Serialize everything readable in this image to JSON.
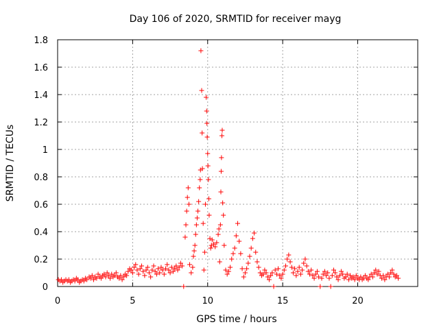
{
  "chart_data": {
    "type": "scatter",
    "title": "Day 106 of 2020, SRMTID for receiver mayg",
    "xlabel": "GPS time / hours",
    "ylabel": "SRMTID / TECUs",
    "xlim": [
      0,
      24
    ],
    "ylim": [
      0,
      1.8
    ],
    "xticks": [
      0,
      5,
      10,
      15,
      20
    ],
    "yticks": [
      0,
      0.2,
      0.4,
      0.6,
      0.8,
      1,
      1.2,
      1.4,
      1.6,
      1.8
    ],
    "xtick_labels": [
      "0",
      "5",
      "10",
      "15",
      "20"
    ],
    "ytick_labels": [
      "0",
      "0.2",
      "0.4",
      "0.6",
      "0.8",
      "1",
      "1.2",
      "1.4",
      "1.6",
      "1.8"
    ],
    "grid": true,
    "marker": "+",
    "color": "#ff0000",
    "series": [
      {
        "name": "SRMTID",
        "points": [
          [
            0.05,
            0.05
          ],
          [
            0.15,
            0.04
          ],
          [
            0.25,
            0.05
          ],
          [
            0.35,
            0.03
          ],
          [
            0.45,
            0.04
          ],
          [
            0.55,
            0.05
          ],
          [
            0.65,
            0.04
          ],
          [
            0.75,
            0.05
          ],
          [
            0.85,
            0.03
          ],
          [
            0.95,
            0.04
          ],
          [
            1.05,
            0.05
          ],
          [
            1.15,
            0.04
          ],
          [
            1.25,
            0.06
          ],
          [
            1.35,
            0.05
          ],
          [
            1.45,
            0.03
          ],
          [
            1.55,
            0.04
          ],
          [
            1.65,
            0.05
          ],
          [
            1.75,
            0.04
          ],
          [
            1.85,
            0.06
          ],
          [
            1.95,
            0.05
          ],
          [
            2.1,
            0.07
          ],
          [
            2.2,
            0.06
          ],
          [
            2.3,
            0.08
          ],
          [
            2.4,
            0.05
          ],
          [
            2.5,
            0.07
          ],
          [
            2.6,
            0.06
          ],
          [
            2.7,
            0.09
          ],
          [
            2.8,
            0.07
          ],
          [
            2.9,
            0.06
          ],
          [
            3.0,
            0.08
          ],
          [
            3.1,
            0.09
          ],
          [
            3.2,
            0.07
          ],
          [
            3.3,
            0.1
          ],
          [
            3.4,
            0.08
          ],
          [
            3.5,
            0.06
          ],
          [
            3.6,
            0.09
          ],
          [
            3.7,
            0.07
          ],
          [
            3.8,
            0.08
          ],
          [
            3.9,
            0.1
          ],
          [
            4.0,
            0.07
          ],
          [
            4.1,
            0.06
          ],
          [
            4.2,
            0.08
          ],
          [
            4.3,
            0.05
          ],
          [
            4.4,
            0.07
          ],
          [
            4.5,
            0.09
          ],
          [
            4.6,
            0.08
          ],
          [
            4.7,
            0.11
          ],
          [
            4.8,
            0.13
          ],
          [
            4.9,
            0.12
          ],
          [
            5.0,
            0.1
          ],
          [
            5.1,
            0.14
          ],
          [
            5.2,
            0.16
          ],
          [
            5.3,
            0.12
          ],
          [
            5.4,
            0.09
          ],
          [
            5.5,
            0.13
          ],
          [
            5.6,
            0.15
          ],
          [
            5.7,
            0.11
          ],
          [
            5.8,
            0.08
          ],
          [
            5.9,
            0.12
          ],
          [
            6.0,
            0.14
          ],
          [
            6.1,
            0.1
          ],
          [
            6.2,
            0.07
          ],
          [
            6.3,
            0.12
          ],
          [
            6.4,
            0.15
          ],
          [
            6.5,
            0.11
          ],
          [
            6.6,
            0.09
          ],
          [
            6.7,
            0.13
          ],
          [
            6.8,
            0.1
          ],
          [
            6.9,
            0.14
          ],
          [
            7.0,
            0.12
          ],
          [
            7.1,
            0.09
          ],
          [
            7.2,
            0.13
          ],
          [
            7.3,
            0.16
          ],
          [
            7.4,
            0.12
          ],
          [
            7.5,
            0.1
          ],
          [
            7.6,
            0.14
          ],
          [
            7.7,
            0.11
          ],
          [
            7.8,
            0.13
          ],
          [
            7.9,
            0.15
          ],
          [
            8.0,
            0.12
          ],
          [
            8.1,
            0.14
          ],
          [
            8.2,
            0.17
          ],
          [
            8.3,
            0.15
          ],
          [
            8.4,
            0.0
          ],
          [
            8.5,
            0.36
          ],
          [
            8.55,
            0.45
          ],
          [
            8.6,
            0.55
          ],
          [
            8.65,
            0.65
          ],
          [
            8.7,
            0.72
          ],
          [
            8.75,
            0.6
          ],
          [
            8.8,
            0.16
          ],
          [
            8.9,
            0.1
          ],
          [
            9.0,
            0.14
          ],
          [
            9.05,
            0.22
          ],
          [
            9.1,
            0.26
          ],
          [
            9.15,
            0.3
          ],
          [
            9.2,
            0.38
          ],
          [
            9.25,
            0.45
          ],
          [
            9.3,
            0.5
          ],
          [
            9.35,
            0.55
          ],
          [
            9.4,
            0.62
          ],
          [
            9.45,
            0.72
          ],
          [
            9.5,
            0.78
          ],
          [
            9.52,
            0.85
          ],
          [
            9.55,
            1.72
          ],
          [
            9.6,
            1.43
          ],
          [
            9.63,
            1.12
          ],
          [
            9.65,
            0.86
          ],
          [
            9.7,
            0.46
          ],
          [
            9.75,
            0.12
          ],
          [
            9.8,
            0.25
          ],
          [
            9.85,
            0.6
          ],
          [
            9.9,
            1.38
          ],
          [
            9.93,
            1.28
          ],
          [
            9.95,
            1.19
          ],
          [
            9.97,
            1.09
          ],
          [
            10.0,
            0.97
          ],
          [
            10.02,
            0.88
          ],
          [
            10.05,
            0.78
          ],
          [
            10.08,
            0.64
          ],
          [
            10.1,
            0.52
          ],
          [
            10.15,
            0.35
          ],
          [
            10.2,
            0.28
          ],
          [
            10.25,
            0.3
          ],
          [
            10.3,
            0.34
          ],
          [
            10.4,
            0.31
          ],
          [
            10.5,
            0.29
          ],
          [
            10.6,
            0.32
          ],
          [
            10.7,
            0.38
          ],
          [
            10.75,
            0.42
          ],
          [
            10.8,
            0.18
          ],
          [
            10.85,
            0.45
          ],
          [
            10.88,
            0.69
          ],
          [
            10.9,
            0.84
          ],
          [
            10.92,
            0.94
          ],
          [
            10.95,
            1.1
          ],
          [
            10.97,
            1.14
          ],
          [
            11.0,
            0.61
          ],
          [
            11.05,
            0.52
          ],
          [
            11.1,
            0.3
          ],
          [
            11.2,
            0.12
          ],
          [
            11.3,
            0.09
          ],
          [
            11.4,
            0.11
          ],
          [
            11.5,
            0.14
          ],
          [
            11.6,
            0.2
          ],
          [
            11.7,
            0.24
          ],
          [
            11.8,
            0.28
          ],
          [
            11.9,
            0.37
          ],
          [
            12.0,
            0.46
          ],
          [
            12.1,
            0.33
          ],
          [
            12.2,
            0.24
          ],
          [
            12.3,
            0.13
          ],
          [
            12.4,
            0.07
          ],
          [
            12.5,
            0.1
          ],
          [
            12.6,
            0.13
          ],
          [
            12.7,
            0.17
          ],
          [
            12.8,
            0.22
          ],
          [
            12.9,
            0.28
          ],
          [
            13.0,
            0.35
          ],
          [
            13.1,
            0.39
          ],
          [
            13.2,
            0.25
          ],
          [
            13.3,
            0.18
          ],
          [
            13.4,
            0.14
          ],
          [
            13.5,
            0.1
          ],
          [
            13.6,
            0.08
          ],
          [
            13.7,
            0.09
          ],
          [
            13.8,
            0.12
          ],
          [
            13.9,
            0.1
          ],
          [
            14.0,
            0.07
          ],
          [
            14.1,
            0.05
          ],
          [
            14.2,
            0.08
          ],
          [
            14.3,
            0.1
          ],
          [
            14.4,
            0.0
          ],
          [
            14.5,
            0.12
          ],
          [
            14.6,
            0.09
          ],
          [
            14.7,
            0.13
          ],
          [
            14.8,
            0.08
          ],
          [
            14.9,
            0.06
          ],
          [
            15.0,
            0.09
          ],
          [
            15.1,
            0.12
          ],
          [
            15.2,
            0.15
          ],
          [
            15.3,
            0.2
          ],
          [
            15.4,
            0.23
          ],
          [
            15.5,
            0.18
          ],
          [
            15.6,
            0.14
          ],
          [
            15.7,
            0.1
          ],
          [
            15.8,
            0.13
          ],
          [
            15.9,
            0.08
          ],
          [
            16.0,
            0.11
          ],
          [
            16.1,
            0.14
          ],
          [
            16.2,
            0.09
          ],
          [
            16.3,
            0.12
          ],
          [
            16.4,
            0.17
          ],
          [
            16.5,
            0.2
          ],
          [
            16.6,
            0.15
          ],
          [
            16.7,
            0.11
          ],
          [
            16.8,
            0.09
          ],
          [
            16.9,
            0.12
          ],
          [
            17.0,
            0.08
          ],
          [
            17.1,
            0.06
          ],
          [
            17.2,
            0.09
          ],
          [
            17.3,
            0.11
          ],
          [
            17.4,
            0.07
          ],
          [
            17.5,
            0.0
          ],
          [
            17.6,
            0.06
          ],
          [
            17.7,
            0.09
          ],
          [
            17.8,
            0.11
          ],
          [
            17.9,
            0.08
          ],
          [
            18.0,
            0.1
          ],
          [
            18.1,
            0.06
          ],
          [
            18.2,
            0.0
          ],
          [
            18.3,
            0.08
          ],
          [
            18.4,
            0.12
          ],
          [
            18.5,
            0.1
          ],
          [
            18.6,
            0.07
          ],
          [
            18.7,
            0.05
          ],
          [
            18.8,
            0.08
          ],
          [
            18.9,
            0.11
          ],
          [
            19.0,
            0.09
          ],
          [
            19.1,
            0.06
          ],
          [
            19.2,
            0.07
          ],
          [
            19.3,
            0.09
          ],
          [
            19.4,
            0.05
          ],
          [
            19.5,
            0.08
          ],
          [
            19.6,
            0.06
          ],
          [
            19.7,
            0.07
          ],
          [
            19.8,
            0.05
          ],
          [
            19.9,
            0.08
          ],
          [
            20.0,
            0.06
          ],
          [
            20.1,
            0.05
          ],
          [
            20.2,
            0.07
          ],
          [
            20.3,
            0.05
          ],
          [
            20.4,
            0.06
          ],
          [
            20.5,
            0.08
          ],
          [
            20.6,
            0.06
          ],
          [
            20.7,
            0.05
          ],
          [
            20.8,
            0.07
          ],
          [
            20.9,
            0.09
          ],
          [
            21.0,
            0.07
          ],
          [
            21.1,
            0.1
          ],
          [
            21.2,
            0.12
          ],
          [
            21.3,
            0.09
          ],
          [
            21.4,
            0.11
          ],
          [
            21.5,
            0.08
          ],
          [
            21.6,
            0.06
          ],
          [
            21.7,
            0.08
          ],
          [
            21.8,
            0.05
          ],
          [
            21.9,
            0.07
          ],
          [
            22.0,
            0.09
          ],
          [
            22.1,
            0.07
          ],
          [
            22.2,
            0.1
          ],
          [
            22.3,
            0.12
          ],
          [
            22.4,
            0.09
          ],
          [
            22.5,
            0.07
          ],
          [
            22.6,
            0.08
          ],
          [
            22.7,
            0.06
          ]
        ]
      }
    ]
  }
}
